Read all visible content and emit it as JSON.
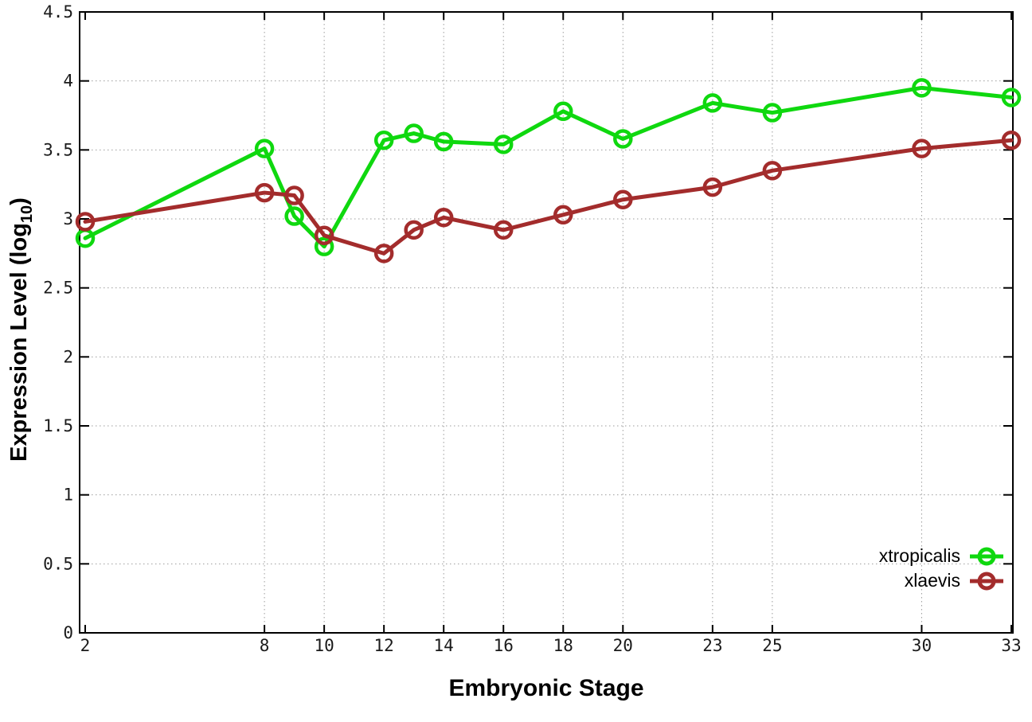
{
  "labels": {
    "x": "Embryonic Stage",
    "y_main": "Expression Level (log",
    "y_sub": "10",
    "y_close": ")"
  },
  "colors": {
    "background": "#ffffff",
    "border": "#000000",
    "grid": "#9c9c9c",
    "tick_text": "#1a1a1a",
    "xtropicalis": "#0fd80f",
    "xlaevis": "#a32c2c"
  },
  "chart_data": {
    "type": "line",
    "title": "",
    "xlabel": "Embryonic Stage",
    "ylabel": "Expression Level (log10)",
    "x": [
      2,
      8,
      9,
      10,
      12,
      13,
      14,
      16,
      18,
      20,
      23,
      25,
      30,
      33
    ],
    "x_tick_labels": [
      "2",
      "8",
      "10",
      "12",
      "14",
      "16",
      "18",
      "20",
      "23",
      "25",
      "30",
      "33"
    ],
    "x_tick_values": [
      2,
      8,
      10,
      12,
      14,
      16,
      18,
      20,
      23,
      25,
      30,
      33
    ],
    "x_grid_values": [
      8,
      10,
      12,
      14,
      16,
      18,
      20,
      23,
      25,
      30
    ],
    "y_ticks": [
      0,
      0.5,
      1,
      1.5,
      2,
      2.5,
      3,
      3.5,
      4,
      4.5
    ],
    "y_tick_labels": [
      "0",
      "0.5",
      "1",
      "1.5",
      "2",
      "2.5",
      "3",
      "3.5",
      "4",
      "4.5"
    ],
    "y_grid_values": [
      0.5,
      1,
      1.5,
      2,
      2.5,
      3,
      3.5,
      4
    ],
    "xlim": [
      1.8,
      33.05
    ],
    "ylim": [
      0,
      4.5
    ],
    "grid": true,
    "legend_position": "inside-bottom-right",
    "series": [
      {
        "name": "xtropicalis",
        "color": "#0fd80f",
        "values": [
          2.86,
          3.51,
          3.02,
          2.8,
          3.57,
          3.62,
          3.56,
          3.54,
          3.78,
          3.58,
          3.84,
          3.77,
          3.95,
          3.88
        ]
      },
      {
        "name": "xlaevis",
        "color": "#a32c2c",
        "values": [
          2.98,
          3.19,
          3.17,
          2.88,
          2.75,
          2.92,
          3.01,
          2.92,
          3.03,
          3.14,
          3.23,
          3.35,
          3.51,
          3.57
        ]
      }
    ]
  }
}
